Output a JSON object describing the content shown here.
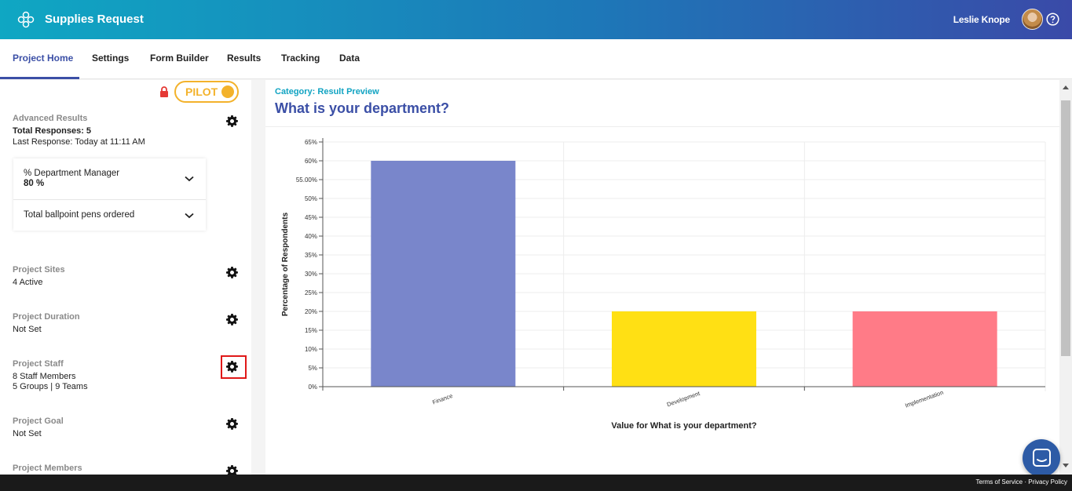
{
  "app": {
    "title": "Supplies Request",
    "user_name": "Leslie Knope"
  },
  "nav": {
    "tabs": [
      "Project Home",
      "Settings",
      "Form Builder",
      "Results",
      "Tracking",
      "Data"
    ],
    "active": "Project Home"
  },
  "sidebar": {
    "pilot_label": "PILOT",
    "advanced": {
      "title": "Advanced Results",
      "total": "Total Responses: 5",
      "last": "Last Response: Today at 11:11 AM",
      "card": {
        "row1_label": "% Department Manager",
        "row1_value": "80 %",
        "row2_label": "Total ballpoint pens ordered"
      }
    },
    "sites": {
      "title": "Project Sites",
      "value": "4 Active"
    },
    "duration": {
      "title": "Project Duration",
      "value": "Not Set"
    },
    "staff": {
      "title": "Project Staff",
      "value": "8 Staff Members",
      "value2": "5 Groups | 9 Teams"
    },
    "goal": {
      "title": "Project Goal",
      "value": "Not Set"
    },
    "members": {
      "title": "Project Members"
    }
  },
  "main": {
    "category": "Category: Result Preview",
    "question": "What is your department?"
  },
  "chart_data": {
    "type": "bar",
    "categories": [
      "Finance",
      "Development",
      "Implementation"
    ],
    "values": [
      60,
      20,
      20
    ],
    "colors": [
      "#7986cb",
      "#ffe014",
      "#ff7b87"
    ],
    "ylabel": "Percentage of Respondents",
    "xlabel": "Value for What is your department?",
    "ylim": [
      0,
      65
    ],
    "yticks": [
      "0%",
      "5%",
      "10%",
      "15%",
      "20%",
      "25%",
      "30%",
      "35%",
      "40%",
      "45%",
      "50%",
      "55.00%",
      "60%",
      "65%"
    ]
  },
  "footer": {
    "terms": "Terms of Service",
    "privacy": "Privacy Policy"
  }
}
